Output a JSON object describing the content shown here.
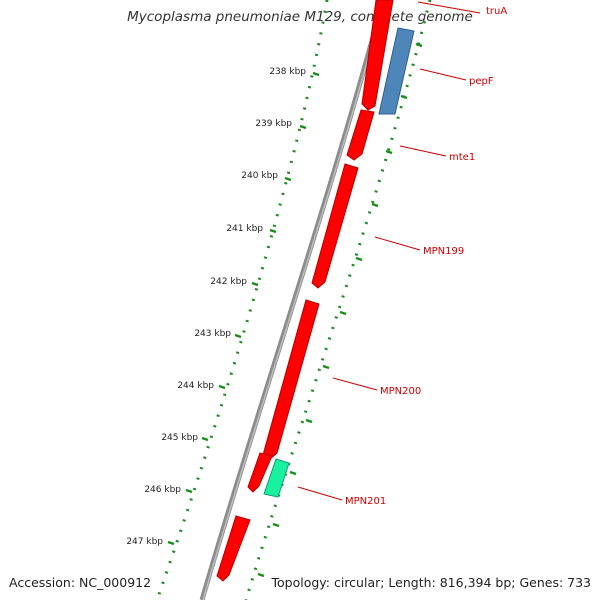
{
  "title": "Mycoplasma pneumoniae M129, complete genome",
  "footer": {
    "accession": "Accession: NC_000912",
    "summary": "Topology: circular; Length: 816,394 bp; Genes: 733"
  },
  "ruler": {
    "ticks": [
      "238 kbp",
      "239 kbp",
      "240 kbp",
      "241 kbp",
      "242 kbp",
      "243 kbp",
      "244 kbp",
      "245 kbp",
      "246 kbp",
      "247 kbp"
    ]
  },
  "genes": [
    {
      "label": "truA",
      "strand": "forward",
      "color": "#ff0000"
    },
    {
      "label": "pepF",
      "strand": "reverse",
      "color": "#4f86b9"
    },
    {
      "label": "mte1",
      "strand": "forward",
      "color": "#ff0000"
    },
    {
      "label": "MPN199",
      "strand": "forward",
      "color": "#ff0000"
    },
    {
      "label": "MPN200",
      "strand": "forward",
      "color": "#ff0000"
    },
    {
      "label": "MPN201",
      "strand": "reverse",
      "color": "#19f0a0"
    },
    {
      "label": "",
      "strand": "forward",
      "color": "#ff0000"
    },
    {
      "label": "",
      "strand": "forward",
      "color": "#ff0000"
    }
  ],
  "colors": {
    "backbone": "#8c8c8c",
    "tick_dots": "#1a8c1a",
    "label_red": "#cc0000"
  }
}
